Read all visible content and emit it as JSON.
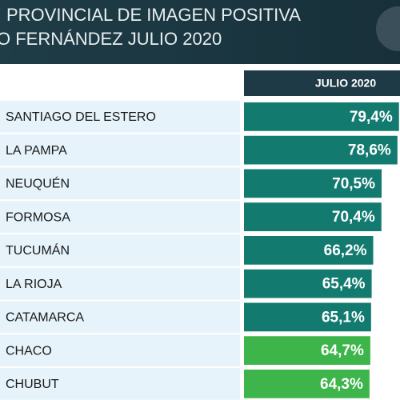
{
  "chart_data": {
    "type": "bar",
    "title_lines": [
      "PROVINCIAL DE IMAGEN POSITIVA",
      "O FERNÁNDEZ JULIO 2020"
    ],
    "column_header": "JULIO 2020",
    "categories": [
      "SANTIAGO DEL ESTERO",
      "LA PAMPA",
      "NEUQUÉN",
      "FORMOSA",
      "TUCUMÁN",
      "LA RIOJA",
      "CATAMARCA",
      "CHACO",
      "CHUBUT"
    ],
    "values": [
      79.4,
      78.6,
      70.5,
      70.4,
      66.2,
      65.4,
      65.1,
      64.7,
      64.3
    ],
    "value_labels": [
      "79,4%",
      "78,6%",
      "70,5%",
      "70,4%",
      "66,2%",
      "65,4%",
      "65,1%",
      "64,7%",
      "64,3%"
    ],
    "colors": [
      "#137a70",
      "#137a70",
      "#137a70",
      "#137a70",
      "#137a70",
      "#137a70",
      "#137a70",
      "#3db54a",
      "#3db54a"
    ]
  }
}
